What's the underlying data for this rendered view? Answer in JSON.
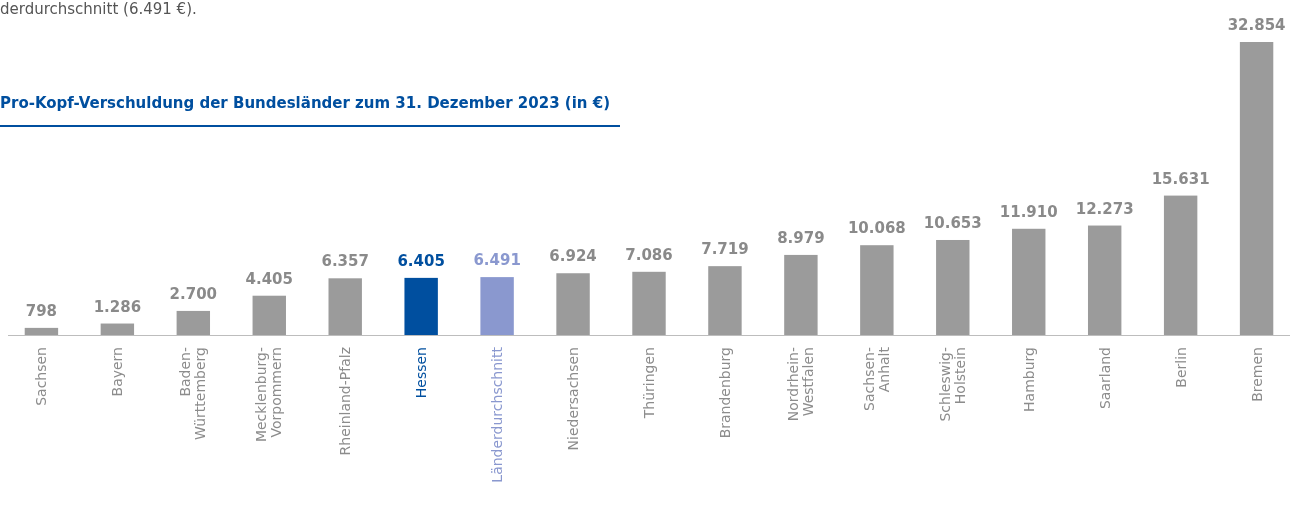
{
  "chart_data": {
    "type": "bar",
    "title": "Pro-Kopf-Verschuldung der Bundesländer zum 31. Dezember 2023 (in €)",
    "annotations": [
      "derdurchschnitt (6.491 €)."
    ],
    "categories": [
      "Sachsen",
      "Bayern",
      "Baden-\nWürttemberg",
      "Mecklenburg-\nVorpommern",
      "Rheinland-Pfalz",
      "Hessen",
      "Länderdurchschnitt",
      "Niedersachsen",
      "Thüringen",
      "Brandenburg",
      "Nordrhein-\nWestfalen",
      "Sachsen-\nAnhalt",
      "Schleswig-\nHolstein",
      "Hamburg",
      "Saarland",
      "Berlin",
      "Bremen"
    ],
    "values": [
      798,
      1286,
      2700,
      4405,
      6357,
      6405,
      6491,
      6924,
      7086,
      7719,
      8979,
      10068,
      10653,
      11910,
      12273,
      15631,
      32854
    ],
    "colors": [
      "#9b9b9b",
      "#9b9b9b",
      "#9b9b9b",
      "#9b9b9b",
      "#9b9b9b",
      "#004f9f",
      "#8a98cf",
      "#9b9b9b",
      "#9b9b9b",
      "#9b9b9b",
      "#9b9b9b",
      "#9b9b9b",
      "#9b9b9b",
      "#9b9b9b",
      "#9b9b9b",
      "#9b9b9b",
      "#9b9b9b"
    ],
    "value_labels": [
      "798",
      "1.286",
      "2.700",
      "4.405",
      "6.357",
      "6.405",
      "6.491",
      "6.924",
      "7.086",
      "7.719",
      "8.979",
      "10.068",
      "10.653",
      "11.910",
      "12.273",
      "15.631",
      "32.854"
    ]
  }
}
